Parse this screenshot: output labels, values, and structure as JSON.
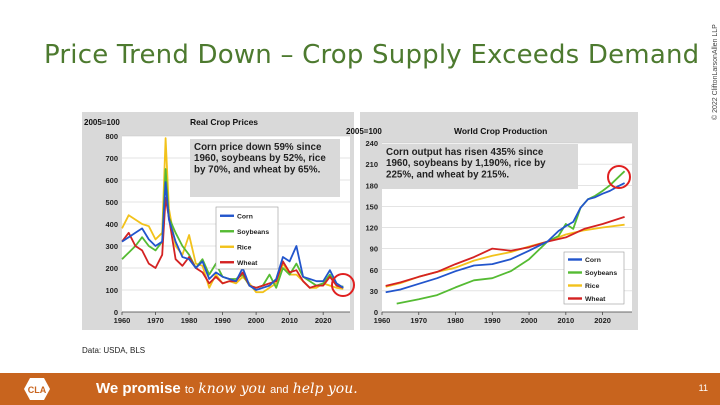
{
  "slide": {
    "title": "Price Trend Down – Crop Supply Exceeds Demand",
    "copyright": "© 2022 CliftonLarsonAllen LLP",
    "source": "Data: USDA, BLS",
    "footer_we_promise": "We promise",
    "footer_to": "to",
    "footer_know_you": "know you",
    "footer_and": "and",
    "footer_help_you": "help you.",
    "page_number": "11",
    "logo_text": "CLA"
  },
  "colors": {
    "corn": "#2255cc",
    "soybeans": "#55bb33",
    "rice": "#f2c21b",
    "wheat": "#d42222",
    "title": "#4d7a2f",
    "footer": "#c8641e"
  },
  "chart_data": [
    {
      "type": "line",
      "title": "Real Crop Prices",
      "ylabel": "2005=100",
      "ylim": [
        0,
        800
      ],
      "yticks": [
        0,
        100,
        200,
        300,
        400,
        500,
        600,
        700,
        800
      ],
      "xlim": [
        1960,
        2028
      ],
      "xticks": [
        1960,
        1970,
        1980,
        1990,
        2000,
        2010,
        2020
      ],
      "annotation": "Corn price down 59% since 1960, soybeans by 52%, rice by 70%, and wheat by 65%.",
      "legend": [
        "Corn",
        "Soybeans",
        "Rice",
        "Wheat"
      ],
      "series": [
        {
          "name": "Corn",
          "x": [
            1960,
            1962,
            1964,
            1966,
            1968,
            1970,
            1972,
            1973,
            1974,
            1976,
            1978,
            1980,
            1982,
            1984,
            1986,
            1988,
            1990,
            1992,
            1994,
            1996,
            1998,
            2000,
            2002,
            2004,
            2006,
            2008,
            2010,
            2012,
            2014,
            2016,
            2018,
            2020,
            2022,
            2024,
            2026
          ],
          "y": [
            320,
            340,
            360,
            380,
            330,
            300,
            320,
            590,
            420,
            320,
            250,
            240,
            200,
            230,
            150,
            180,
            160,
            150,
            140,
            200,
            120,
            100,
            110,
            120,
            150,
            250,
            230,
            300,
            160,
            150,
            140,
            140,
            190,
            130,
            110
          ]
        },
        {
          "name": "Soybeans",
          "x": [
            1960,
            1962,
            1964,
            1966,
            1968,
            1970,
            1972,
            1973,
            1974,
            1976,
            1978,
            1980,
            1982,
            1984,
            1986,
            1988,
            1990,
            1992,
            1994,
            1996,
            1998,
            2000,
            2002,
            2004,
            2006,
            2008,
            2010,
            2012,
            2014,
            2016,
            2018,
            2020,
            2022,
            2024,
            2026
          ],
          "y": [
            240,
            270,
            300,
            340,
            300,
            280,
            320,
            650,
            430,
            360,
            300,
            260,
            200,
            240,
            170,
            220,
            160,
            150,
            150,
            170,
            120,
            110,
            120,
            170,
            110,
            200,
            170,
            220,
            160,
            140,
            120,
            130,
            170,
            120,
            115
          ]
        },
        {
          "name": "Rice",
          "x": [
            1960,
            1962,
            1964,
            1966,
            1968,
            1970,
            1972,
            1973,
            1974,
            1976,
            1978,
            1980,
            1982,
            1984,
            1986,
            1988,
            1990,
            1992,
            1994,
            1996,
            1998,
            2000,
            2002,
            2004,
            2006,
            2008,
            2010,
            2012,
            2014,
            2016,
            2018,
            2020,
            2022,
            2024,
            2026
          ],
          "y": [
            380,
            440,
            420,
            400,
            390,
            330,
            360,
            790,
            470,
            300,
            260,
            350,
            220,
            210,
            110,
            170,
            130,
            140,
            130,
            160,
            130,
            90,
            90,
            110,
            130,
            220,
            170,
            170,
            140,
            110,
            110,
            130,
            120,
            110,
            105
          ]
        },
        {
          "name": "Wheat",
          "x": [
            1960,
            1962,
            1964,
            1966,
            1968,
            1970,
            1972,
            1973,
            1974,
            1976,
            1978,
            1980,
            1982,
            1984,
            1986,
            1988,
            1990,
            1992,
            1994,
            1996,
            1998,
            2000,
            2002,
            2004,
            2006,
            2008,
            2010,
            2012,
            2014,
            2016,
            2018,
            2020,
            2022,
            2024,
            2026
          ],
          "y": [
            320,
            360,
            300,
            280,
            220,
            200,
            260,
            520,
            430,
            240,
            210,
            250,
            200,
            180,
            130,
            160,
            130,
            140,
            140,
            180,
            120,
            110,
            120,
            130,
            140,
            230,
            180,
            190,
            140,
            110,
            120,
            120,
            160,
            120,
            110
          ]
        }
      ]
    },
    {
      "type": "line",
      "title": "World Crop Production",
      "ylabel": "2005=100",
      "ylim": [
        0,
        240
      ],
      "yticks": [
        0,
        30,
        60,
        90,
        120,
        150,
        180,
        210,
        240
      ],
      "xlim": [
        1960,
        2028
      ],
      "xticks": [
        1960,
        1970,
        1980,
        1990,
        2000,
        2010,
        2020
      ],
      "annotation": "Corn output has risen 435% since 1960, soybeans by 1,190%, rice by 225%, and wheat by 215%.",
      "legend": [
        "Corn",
        "Soybeans",
        "Rice",
        "Wheat"
      ],
      "series": [
        {
          "name": "Corn",
          "x": [
            1961,
            1965,
            1970,
            1975,
            1980,
            1985,
            1990,
            1995,
            2000,
            2005,
            2008,
            2010,
            2012,
            2014,
            2016,
            2018,
            2020,
            2022,
            2024,
            2026
          ],
          "y": [
            28,
            32,
            40,
            48,
            58,
            66,
            68,
            75,
            87,
            100,
            115,
            122,
            128,
            148,
            160,
            163,
            168,
            172,
            178,
            183
          ]
        },
        {
          "name": "Soybeans",
          "x": [
            1964,
            1970,
            1975,
            1980,
            1985,
            1990,
            1995,
            2000,
            2005,
            2008,
            2010,
            2012,
            2014,
            2016,
            2018,
            2020,
            2022,
            2024,
            2026
          ],
          "y": [
            12,
            18,
            24,
            35,
            45,
            48,
            58,
            75,
            100,
            108,
            125,
            118,
            148,
            160,
            165,
            172,
            180,
            190,
            200
          ]
        },
        {
          "name": "Rice",
          "x": [
            1961,
            1965,
            1970,
            1975,
            1980,
            1985,
            1990,
            1995,
            2000,
            2005,
            2010,
            2015,
            2020,
            2026
          ],
          "y": [
            36,
            41,
            50,
            57,
            63,
            73,
            80,
            85,
            93,
            100,
            110,
            116,
            120,
            124
          ]
        },
        {
          "name": "Wheat",
          "x": [
            1961,
            1965,
            1970,
            1975,
            1980,
            1985,
            1990,
            1995,
            2000,
            2005,
            2010,
            2015,
            2020,
            2026
          ],
          "y": [
            37,
            42,
            50,
            57,
            68,
            78,
            90,
            87,
            92,
            100,
            106,
            118,
            125,
            135
          ]
        }
      ]
    }
  ]
}
